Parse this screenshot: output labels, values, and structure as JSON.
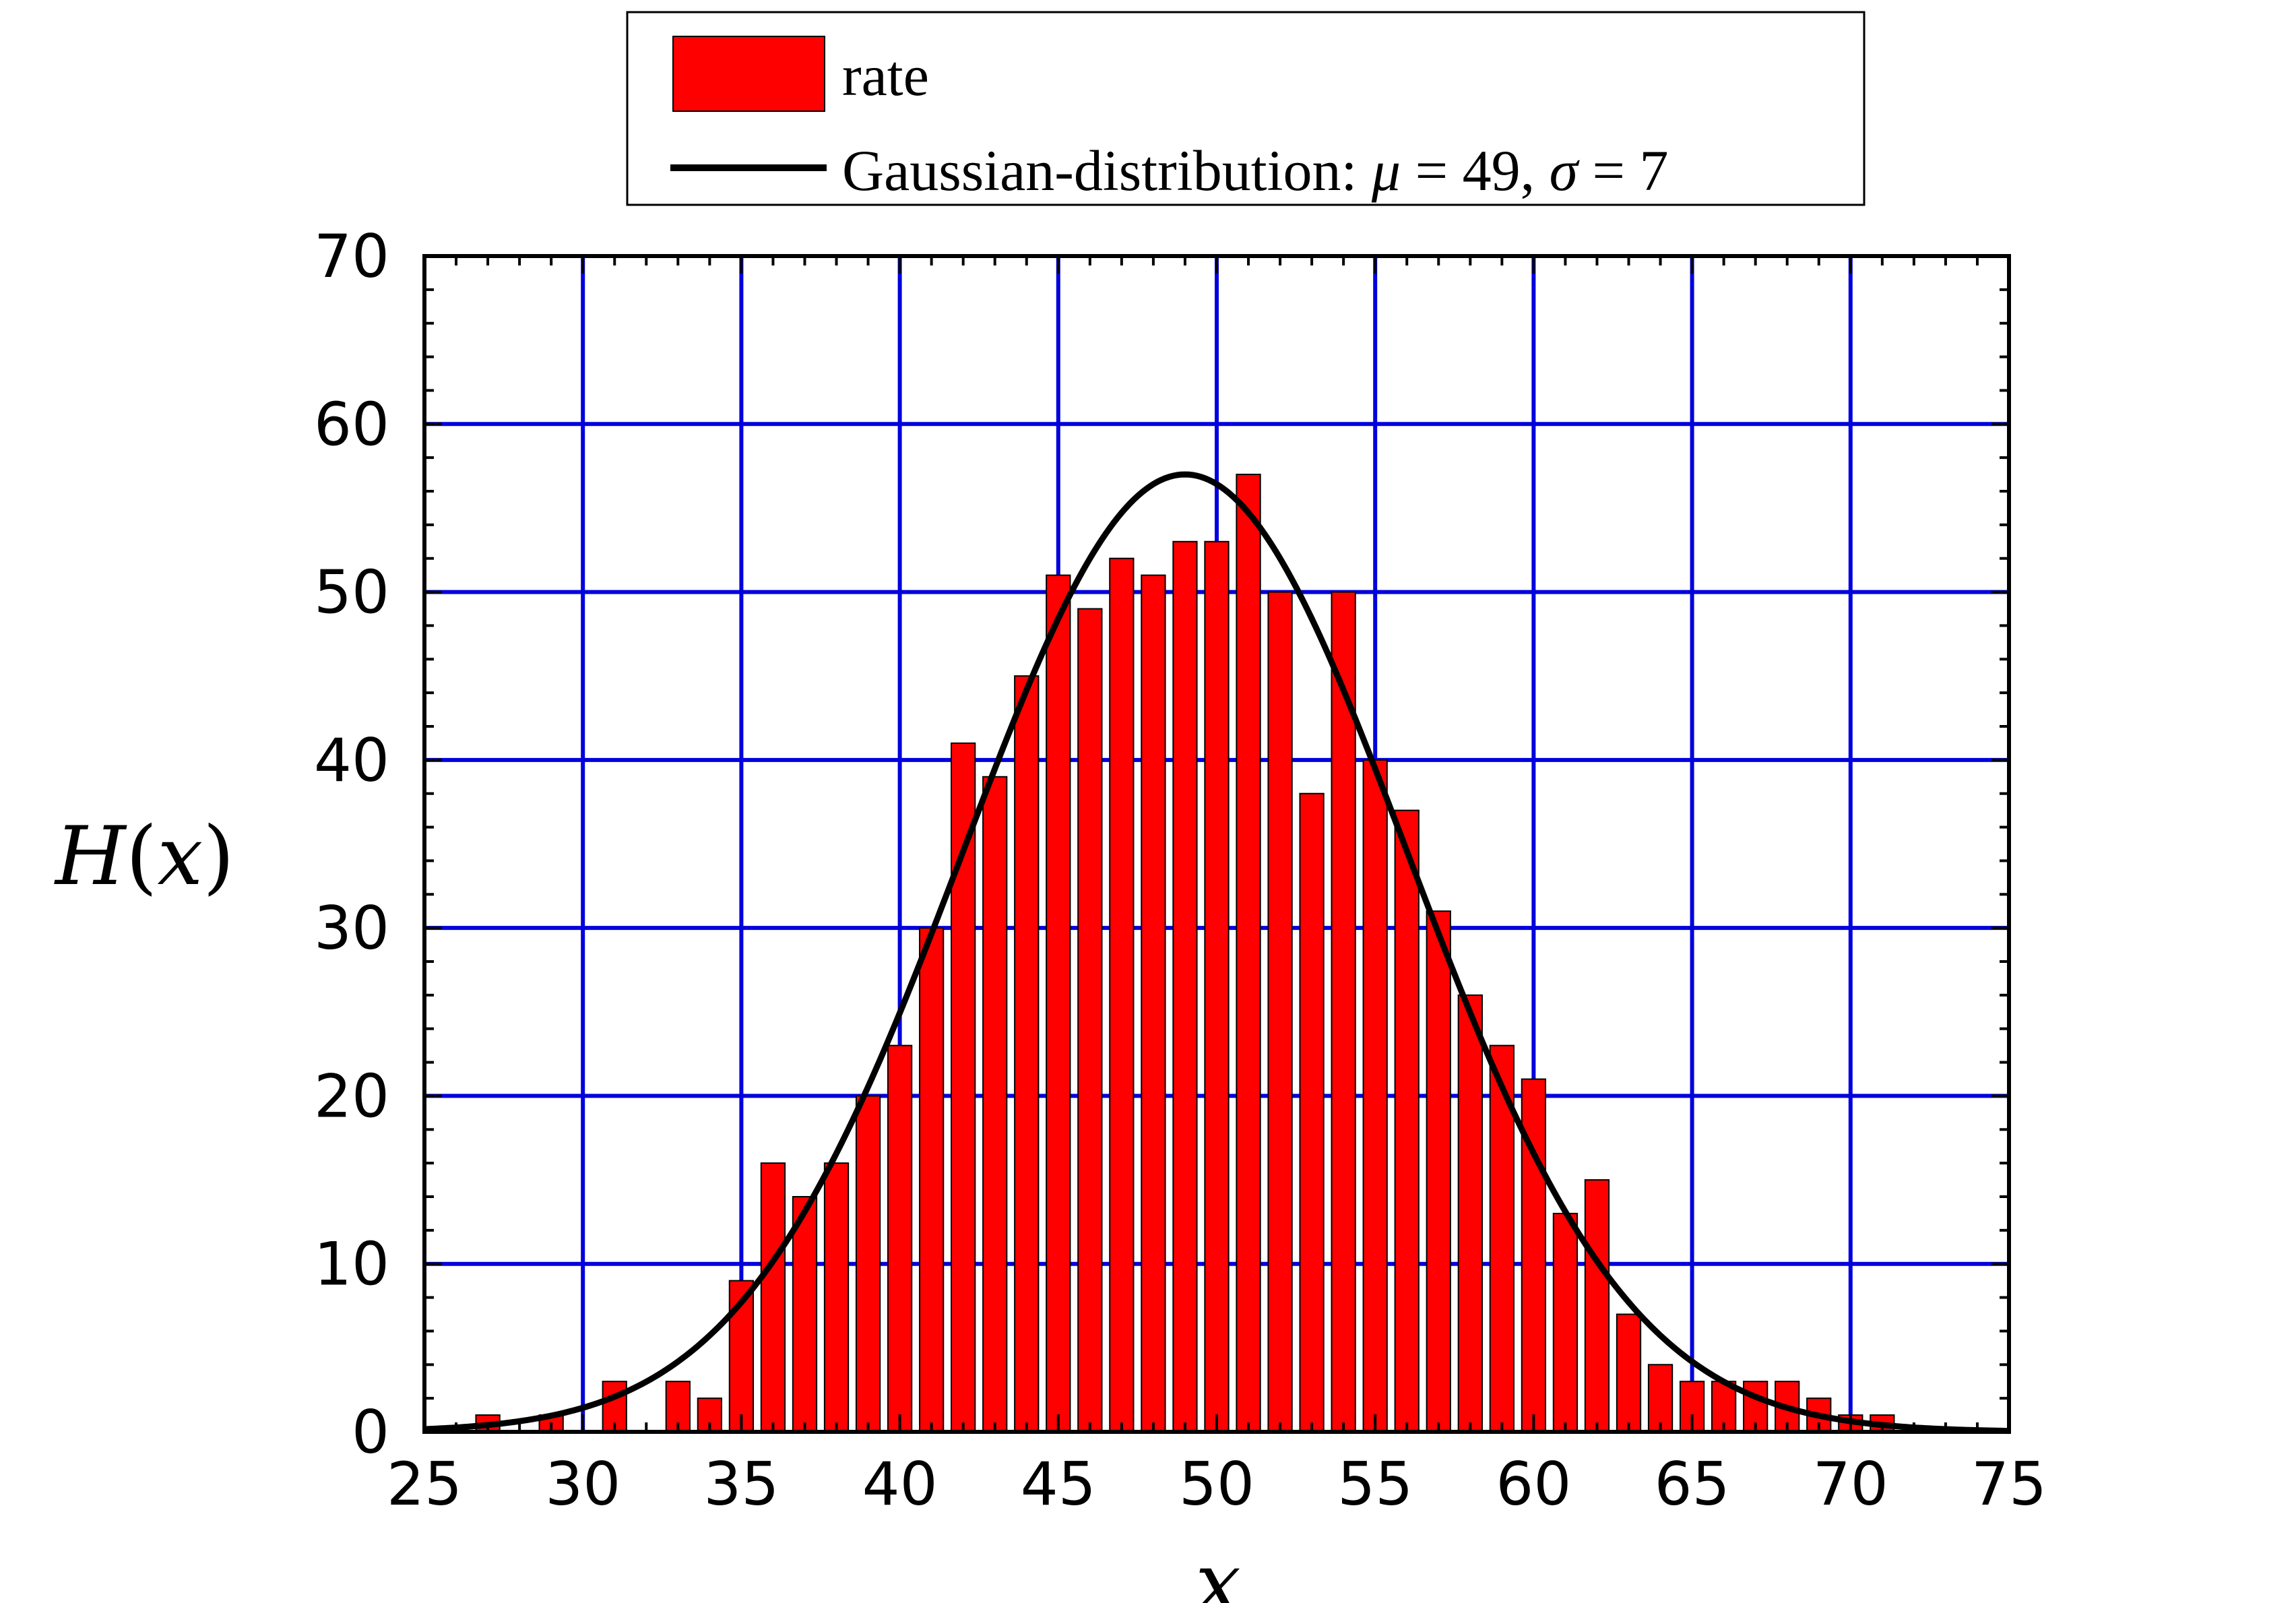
{
  "chart_data": {
    "type": "bar",
    "ylabel": "H(x)",
    "xlabel": "x",
    "xlim": [
      25,
      75
    ],
    "ylim": [
      0,
      70
    ],
    "x_ticks": [
      "25",
      "30",
      "35",
      "40",
      "45",
      "50",
      "55",
      "60",
      "65",
      "70",
      "75"
    ],
    "y_ticks": [
      "0",
      "10",
      "20",
      "30",
      "40",
      "50",
      "60",
      "70"
    ],
    "grid": true,
    "grid_color": "#0000dd",
    "legend_position": "top-center",
    "series": [
      {
        "name": "rate",
        "type": "bar",
        "color": "#ff0000",
        "x": [
          27,
          29,
          31,
          33,
          34,
          35,
          36,
          37,
          38,
          39,
          40,
          41,
          42,
          43,
          44,
          45,
          46,
          47,
          48,
          49,
          50,
          51,
          52,
          53,
          54,
          55,
          56,
          57,
          58,
          59,
          60,
          61,
          62,
          63,
          64,
          65,
          66,
          67,
          68,
          69,
          70,
          71
        ],
        "values": [
          1,
          1,
          3,
          3,
          2,
          9,
          16,
          14,
          16,
          20,
          23,
          30,
          41,
          39,
          45,
          51,
          49,
          52,
          51,
          53,
          53,
          57,
          50,
          38,
          50,
          40,
          37,
          31,
          26,
          23,
          21,
          13,
          15,
          7,
          4,
          3,
          3,
          3,
          3,
          2,
          1,
          1
        ]
      },
      {
        "name": "Gaussian-distribution: μ = 49, σ = 7",
        "name_parts": [
          "Gaussian-distribution: ",
          "μ",
          " = 49, ",
          "σ",
          " = 7"
        ],
        "type": "line",
        "color": "#000000",
        "mu": 49,
        "sigma": 7,
        "peak": 57
      }
    ]
  }
}
